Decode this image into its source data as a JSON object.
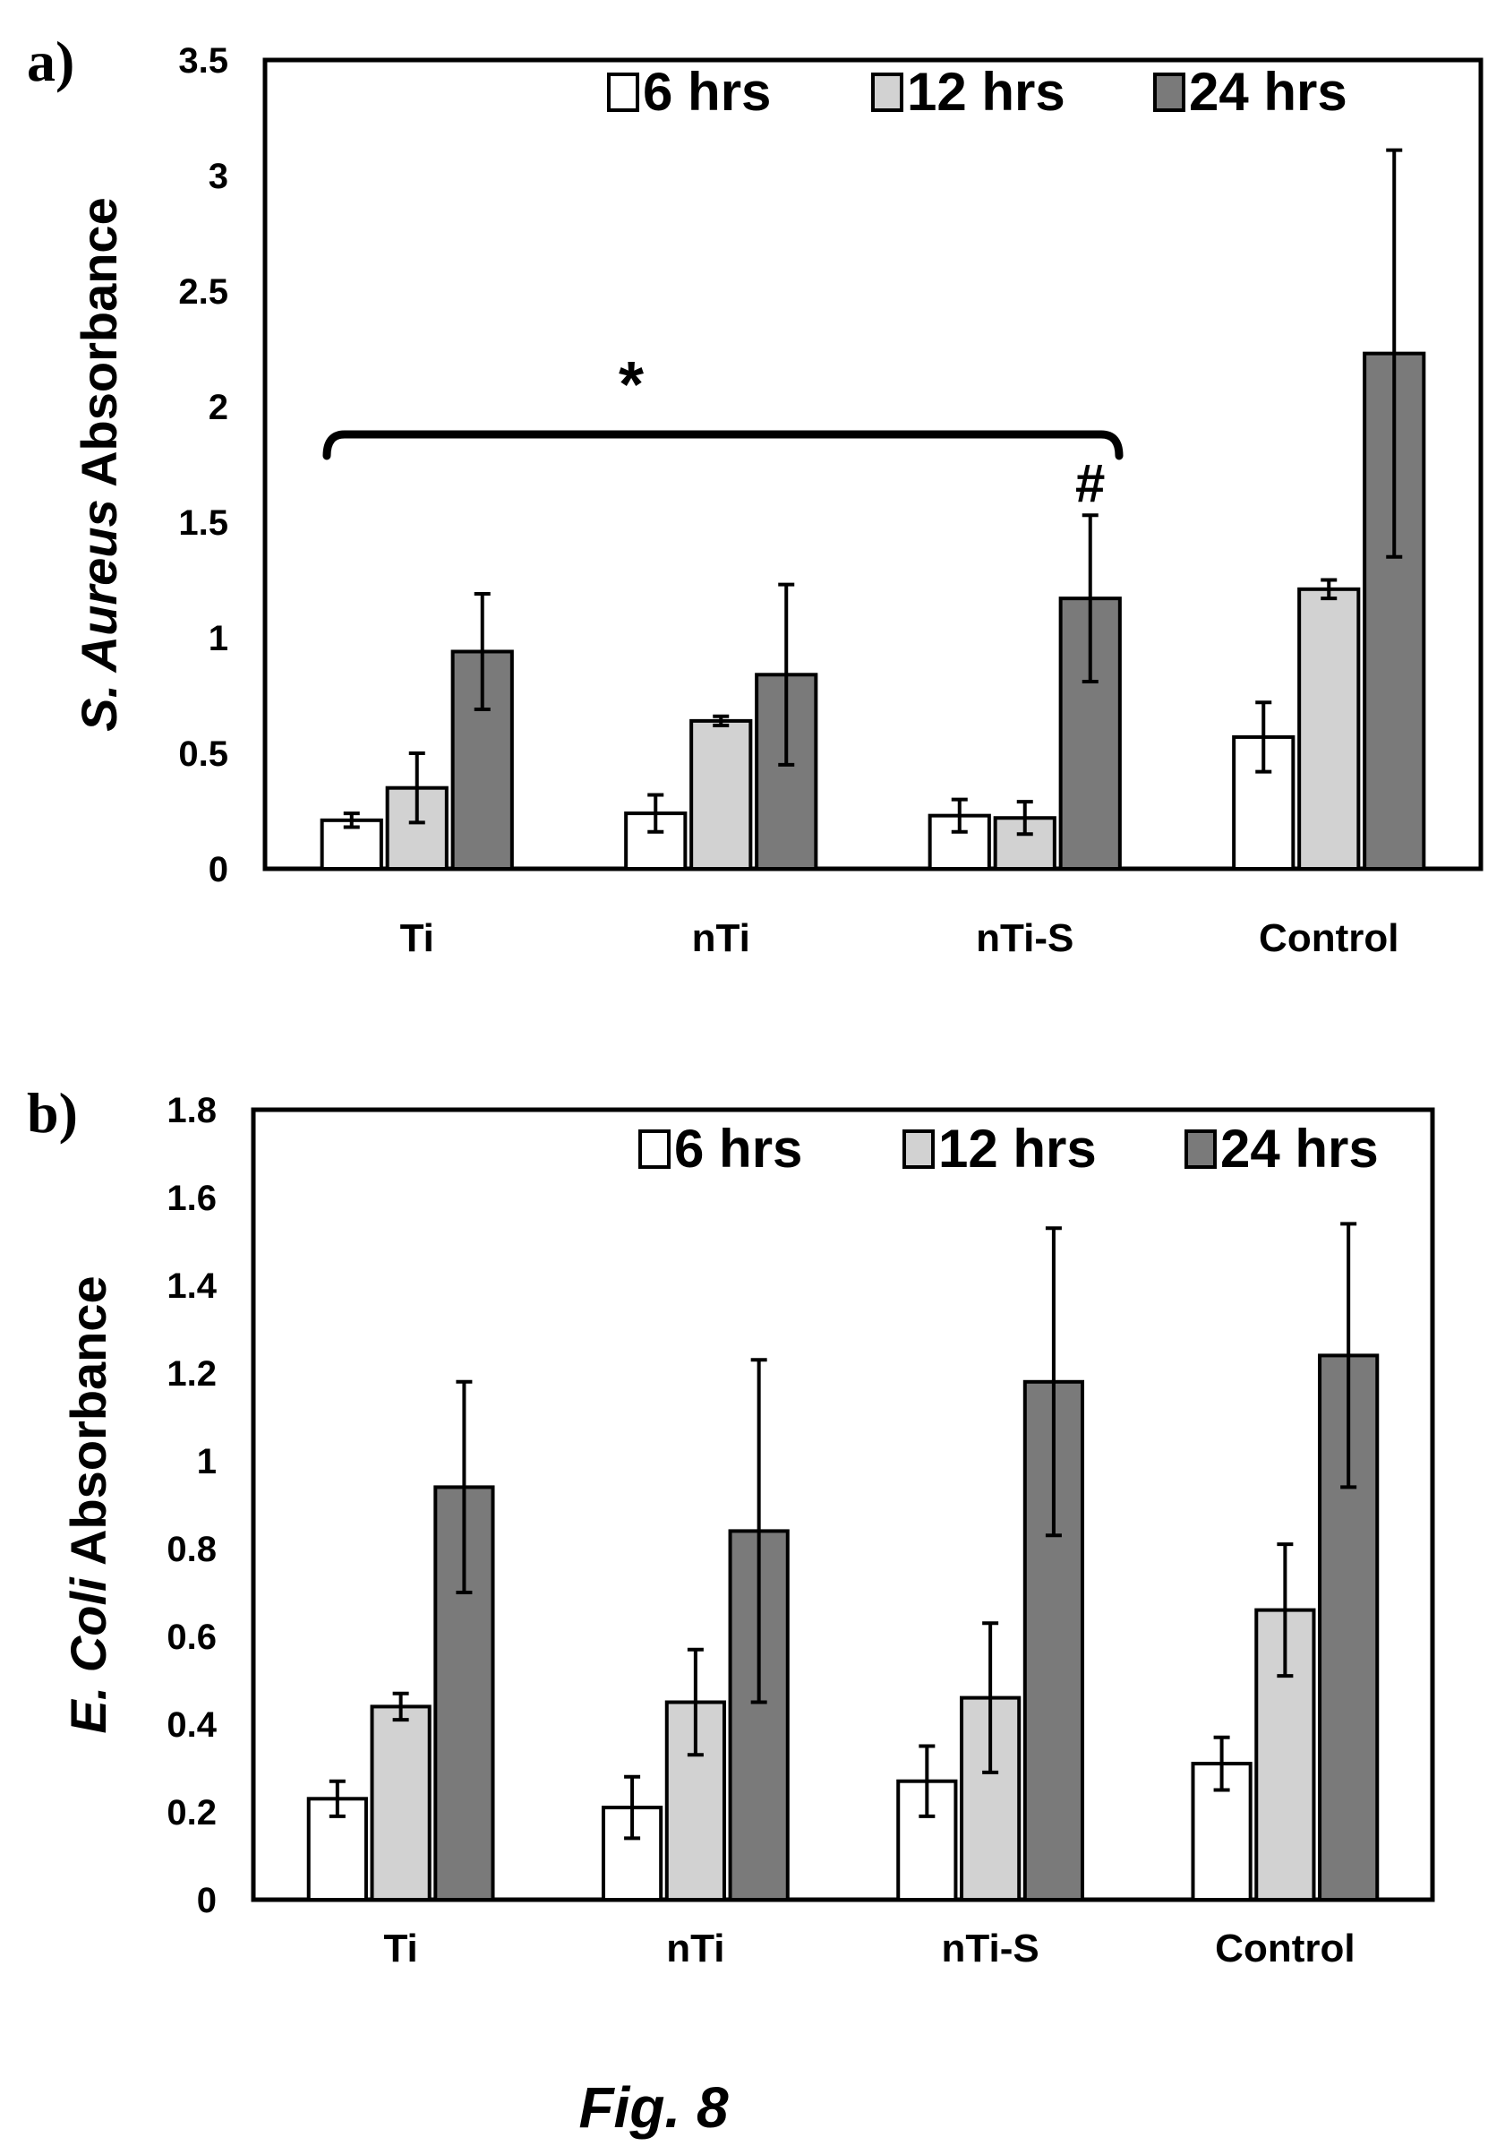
{
  "figure": {
    "caption": "Fig. 8"
  },
  "colors": {
    "6 hrs": "#ffffff",
    "12 hrs": "#d2d2d2",
    "24 hrs": "#7a7a7a",
    "stroke": "#000000"
  },
  "chart_data": [
    {
      "type": "bar",
      "panel": "a)",
      "ylabel_italic": "S. Aureus",
      "ylabel_rest": " Absorbance",
      "categories": [
        "Ti",
        "nTi",
        "nTi-S",
        "Control"
      ],
      "ylim": [
        0,
        3.5
      ],
      "yticks": [
        0,
        0.5,
        1,
        1.5,
        2,
        2.5,
        3,
        3.5
      ],
      "ytick_labels": [
        "0",
        "0.5",
        "1",
        "1.5",
        "2",
        "2.5",
        "3",
        "3.5"
      ],
      "grid": false,
      "legend": "top-right",
      "series": [
        {
          "name": "6 hrs",
          "values": [
            0.21,
            0.24,
            0.23,
            0.57
          ],
          "errors": [
            0.03,
            0.08,
            0.07,
            0.15
          ]
        },
        {
          "name": "12 hrs",
          "values": [
            0.35,
            0.64,
            0.22,
            1.21
          ],
          "errors": [
            0.15,
            0.02,
            0.07,
            0.04
          ]
        },
        {
          "name": "24 hrs",
          "values": [
            0.94,
            0.84,
            1.17,
            2.23
          ],
          "errors": [
            0.25,
            0.39,
            0.36,
            0.88
          ]
        }
      ],
      "annotations": {
        "star": "*",
        "hash": "#"
      }
    },
    {
      "type": "bar",
      "panel": "b)",
      "ylabel_italic": "E. Coli",
      "ylabel_rest": " Absorbance",
      "categories": [
        "Ti",
        "nTi",
        "nTi-S",
        "Control"
      ],
      "ylim": [
        0,
        1.8
      ],
      "yticks": [
        0,
        0.2,
        0.4,
        0.6,
        0.8,
        1,
        1.2,
        1.4,
        1.6,
        1.8
      ],
      "ytick_labels": [
        "0",
        "0.2",
        "0.4",
        "0.6",
        "0.8",
        "1",
        "1.2",
        "1.4",
        "1.6",
        "1.8"
      ],
      "grid": false,
      "legend": "top-right",
      "series": [
        {
          "name": "6 hrs",
          "values": [
            0.23,
            0.21,
            0.27,
            0.31
          ],
          "errors": [
            0.04,
            0.07,
            0.08,
            0.06
          ]
        },
        {
          "name": "12 hrs",
          "values": [
            0.44,
            0.45,
            0.46,
            0.66
          ],
          "errors": [
            0.03,
            0.12,
            0.17,
            0.15
          ]
        },
        {
          "name": "24 hrs",
          "values": [
            0.94,
            0.84,
            1.18,
            1.24
          ],
          "errors": [
            0.24,
            0.39,
            0.35,
            0.3
          ]
        }
      ]
    }
  ]
}
